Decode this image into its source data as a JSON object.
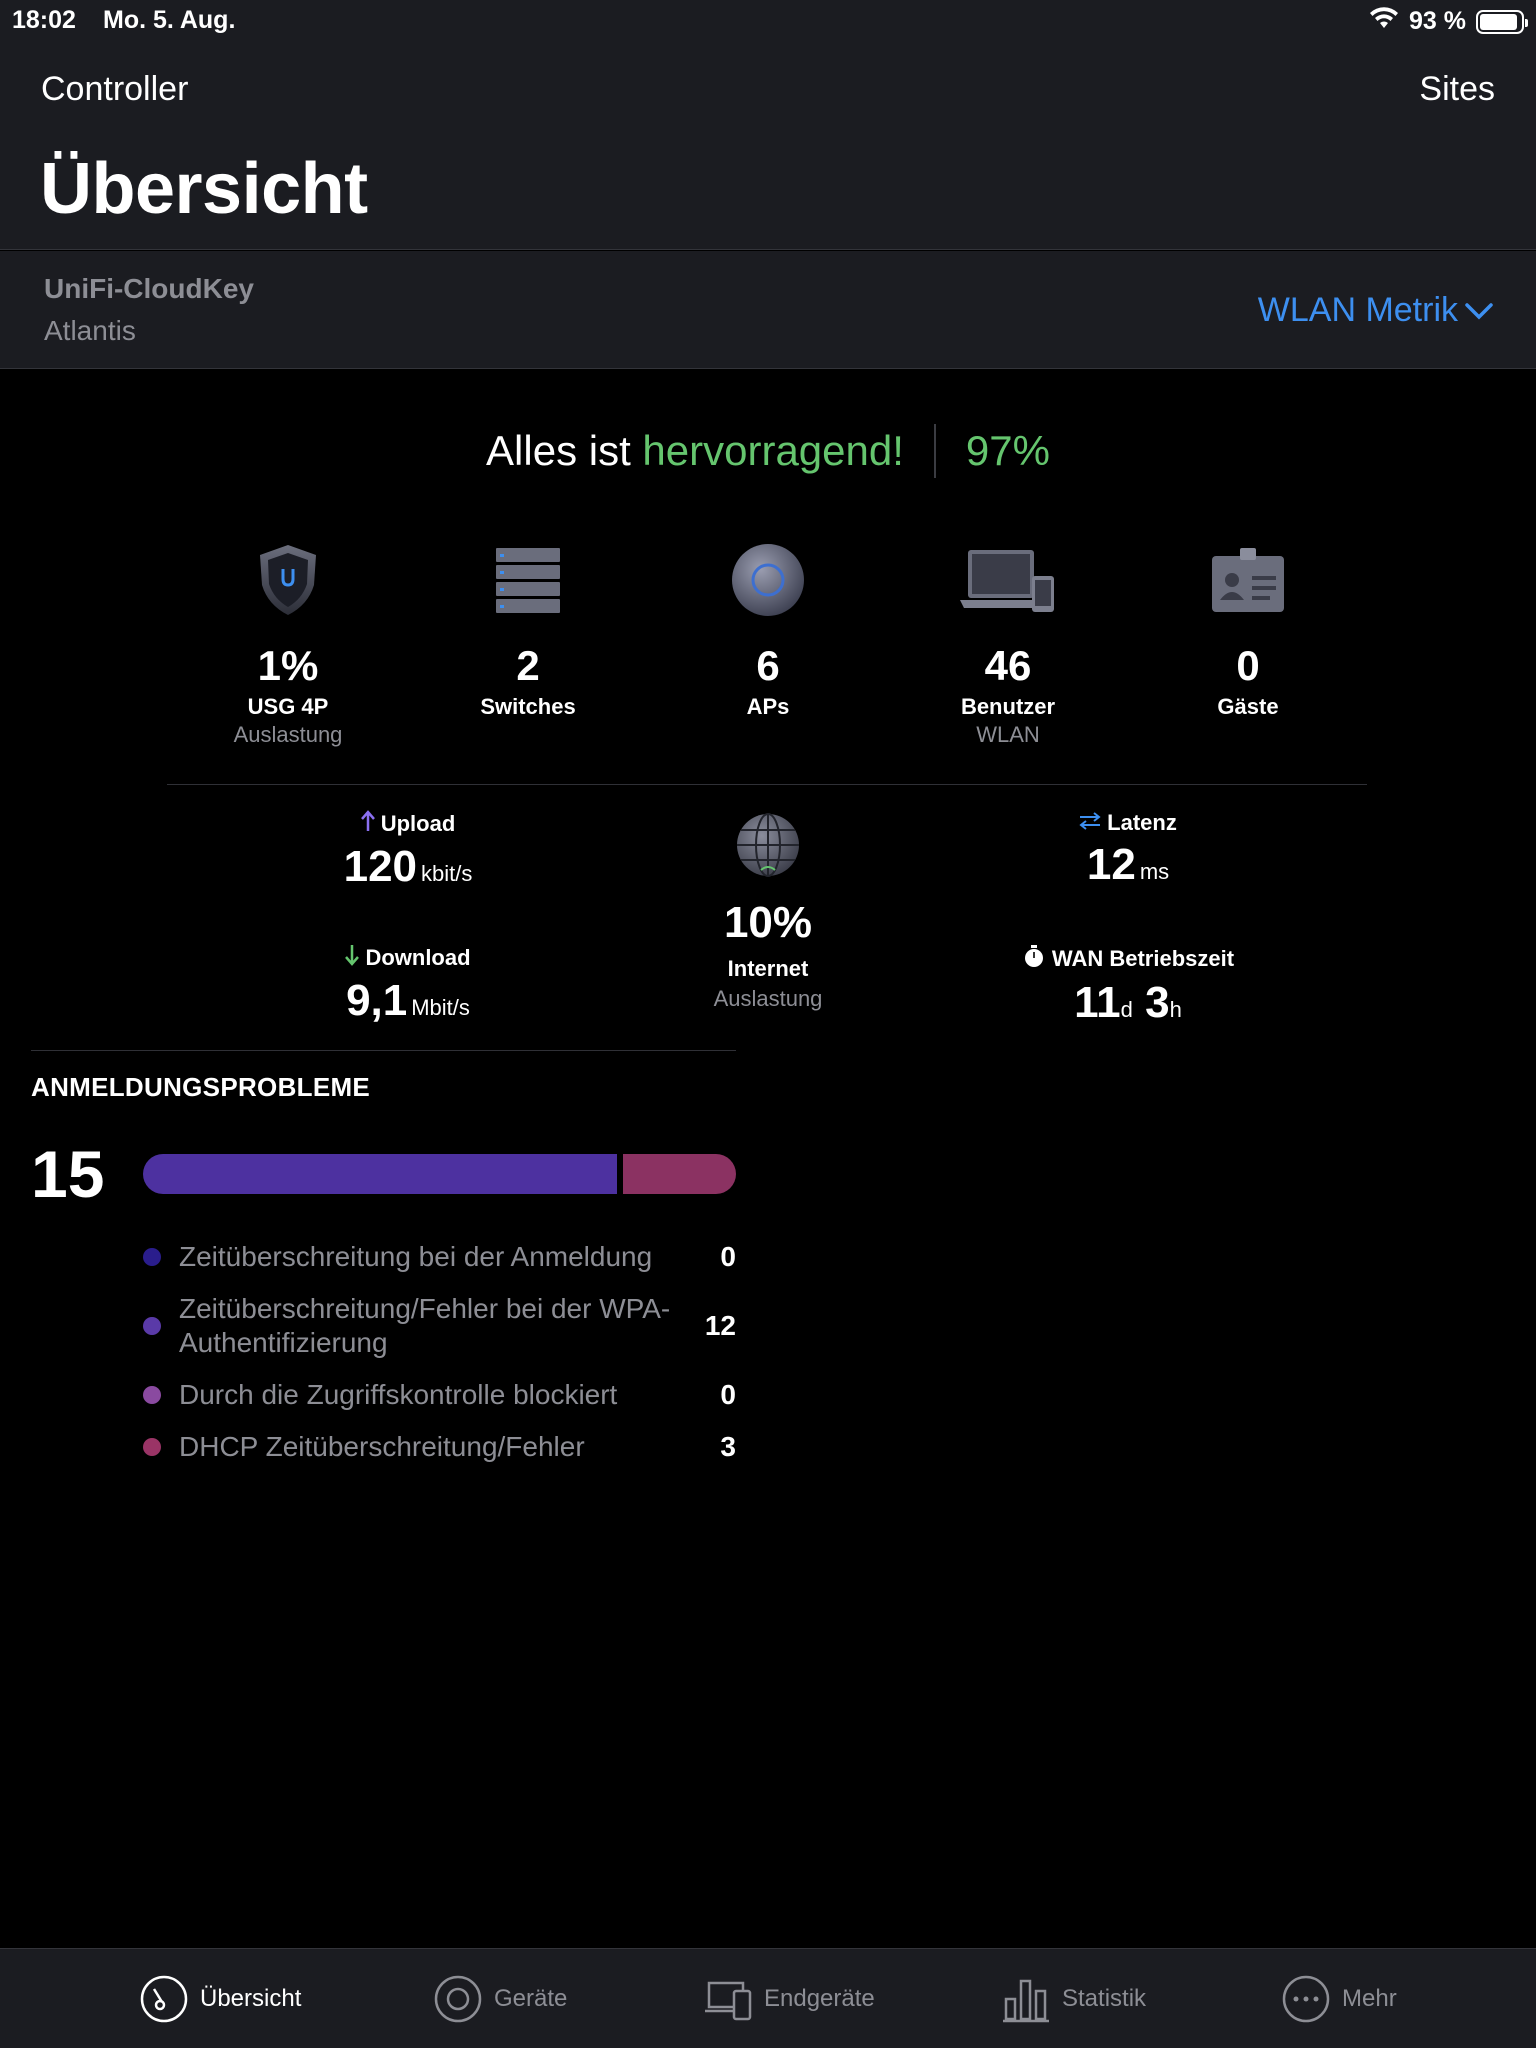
{
  "status_bar": {
    "time": "18:02",
    "date": "Mo. 5. Aug.",
    "battery": "93 %"
  },
  "header": {
    "back_label": "Controller",
    "sites_label": "Sites",
    "title": "Übersicht"
  },
  "site": {
    "controller_name": "UniFi-CloudKey",
    "site_name": "Atlantis",
    "metric_selector": "WLAN Metrik"
  },
  "health": {
    "prefix": "Alles ist",
    "status": "hervorragend!",
    "score": "97%"
  },
  "devices": [
    {
      "value": "1%",
      "label": "USG 4P",
      "sub": "Auslastung",
      "icon": "gateway-shield-icon"
    },
    {
      "value": "2",
      "label": "Switches",
      "sub": "",
      "icon": "switch-stack-icon"
    },
    {
      "value": "6",
      "label": "APs",
      "sub": "",
      "icon": "access-point-icon"
    },
    {
      "value": "46",
      "label": "Benutzer",
      "sub": "WLAN",
      "icon": "laptop-phone-icon"
    },
    {
      "value": "0",
      "label": "Gäste",
      "sub": "",
      "icon": "guest-badge-icon"
    }
  ],
  "wan": {
    "upload_label": "Upload",
    "upload_value": "120",
    "upload_unit": "kbit/s",
    "download_label": "Download",
    "download_value": "9,1",
    "download_unit": "Mbit/s",
    "internet_value": "10%",
    "internet_label": "Internet",
    "internet_sub": "Auslastung",
    "latency_label": "Latenz",
    "latency_value": "12",
    "latency_unit": "ms",
    "uptime_label": "WAN Betriebszeit",
    "uptime_days": "11",
    "uptime_days_unit": "d",
    "uptime_hours": "3",
    "uptime_hours_unit": "h"
  },
  "issues": {
    "title": "ANMELDUNGSPROBLEME",
    "total": "15",
    "items": [
      {
        "label": "Zeitüberschreitung bei der Anmeldung",
        "count": "0",
        "color": "#2a1d8c"
      },
      {
        "label": "Zeitüberschreitung/Fehler bei der WPA-Authentifizierung",
        "count": "12",
        "color": "#5a3aa8"
      },
      {
        "label": "Durch die Zugriffskontrolle blockiert",
        "count": "0",
        "color": "#8a4aa0"
      },
      {
        "label": "DHCP Zeitüberschreitung/Fehler",
        "count": "3",
        "color": "#9a3466"
      }
    ],
    "bar_fractions": {
      "wpa": 0.8,
      "dhcp": 0.2
    }
  },
  "tabs": [
    {
      "label": "Übersicht",
      "icon": "dashboard-gauge-icon",
      "active": true
    },
    {
      "label": "Geräte",
      "icon": "device-circle-icon",
      "active": false
    },
    {
      "label": "Endgeräte",
      "icon": "clients-devices-icon",
      "active": false
    },
    {
      "label": "Statistik",
      "icon": "bar-chart-icon",
      "active": false
    },
    {
      "label": "Mehr",
      "icon": "more-dots-icon",
      "active": false
    }
  ],
  "colors": {
    "accent_blue": "#3d8ff0",
    "good_green": "#65c56e",
    "panel": "#1b1c21"
  }
}
